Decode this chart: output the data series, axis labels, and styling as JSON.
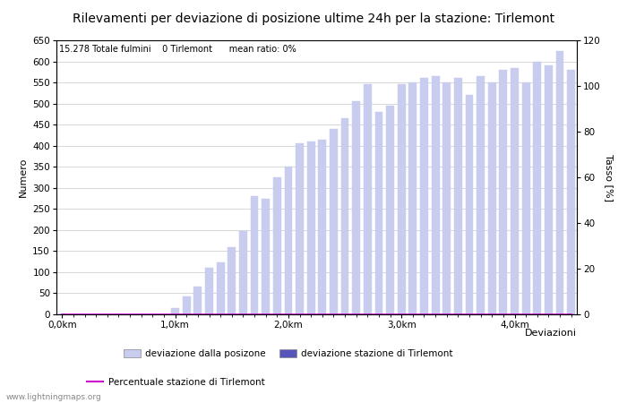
{
  "title": "Rilevamenti per deviazione di posizione ultime 24h per la stazione: Tirlemont",
  "subtitle": "15.278 Totale fulmini    0 Tirlemont      mean ratio: 0%",
  "xlabel": "Deviazioni",
  "ylabel_left": "Numero",
  "ylabel_right": "Tasso [%]",
  "xlim": [
    -0.5,
    45.5
  ],
  "ylim_left": [
    0,
    650
  ],
  "ylim_right": [
    0,
    120
  ],
  "xtick_positions": [
    0,
    10,
    20,
    30,
    40
  ],
  "xtick_labels": [
    "0,0km",
    "1,0km",
    "2,0km",
    "3,0km",
    "4,0km"
  ],
  "ytick_left": [
    0,
    50,
    100,
    150,
    200,
    250,
    300,
    350,
    400,
    450,
    500,
    550,
    600,
    650
  ],
  "ytick_right": [
    0,
    20,
    40,
    60,
    80,
    100,
    120
  ],
  "bar_values": [
    0,
    0,
    0,
    0,
    0,
    0,
    0,
    0,
    0,
    0,
    15,
    42,
    65,
    110,
    123,
    160,
    198,
    280,
    275,
    325,
    350,
    405,
    410,
    415,
    440,
    465,
    505,
    545,
    480,
    495,
    545,
    550,
    560,
    565,
    550,
    560,
    520,
    565,
    550,
    580,
    585,
    550,
    600,
    590,
    625,
    580
  ],
  "station_values": [
    0,
    0,
    0,
    0,
    0,
    0,
    0,
    0,
    0,
    0,
    0,
    0,
    0,
    0,
    0,
    0,
    0,
    0,
    0,
    0,
    0,
    0,
    0,
    0,
    0,
    0,
    0,
    0,
    0,
    0,
    0,
    0,
    0,
    0,
    0,
    0,
    0,
    0,
    0,
    0,
    0,
    0,
    0,
    0,
    0,
    0
  ],
  "line_values": [
    0,
    0,
    0,
    0,
    0,
    0,
    0,
    0,
    0,
    0,
    0,
    0,
    0,
    0,
    0,
    0,
    0,
    0,
    0,
    0,
    0,
    0,
    0,
    0,
    0,
    0,
    0,
    0,
    0,
    0,
    0,
    0,
    0,
    0,
    0,
    0,
    0,
    0,
    0,
    0,
    0,
    0,
    0,
    0,
    0,
    0
  ],
  "bar_color_light": "#c8ccee",
  "bar_color_dark": "#5555bb",
  "line_color": "#cc00cc",
  "background_color": "#ffffff",
  "grid_color": "#c8c8c8",
  "bar_width": 0.7,
  "legend_labels": [
    "deviazione dalla posizone",
    "deviazione stazione di Tirlemont",
    "Percentuale stazione di Tirlemont"
  ],
  "watermark": "www.lightningmaps.org",
  "title_fontsize": 10,
  "label_fontsize": 8,
  "tick_fontsize": 7.5
}
